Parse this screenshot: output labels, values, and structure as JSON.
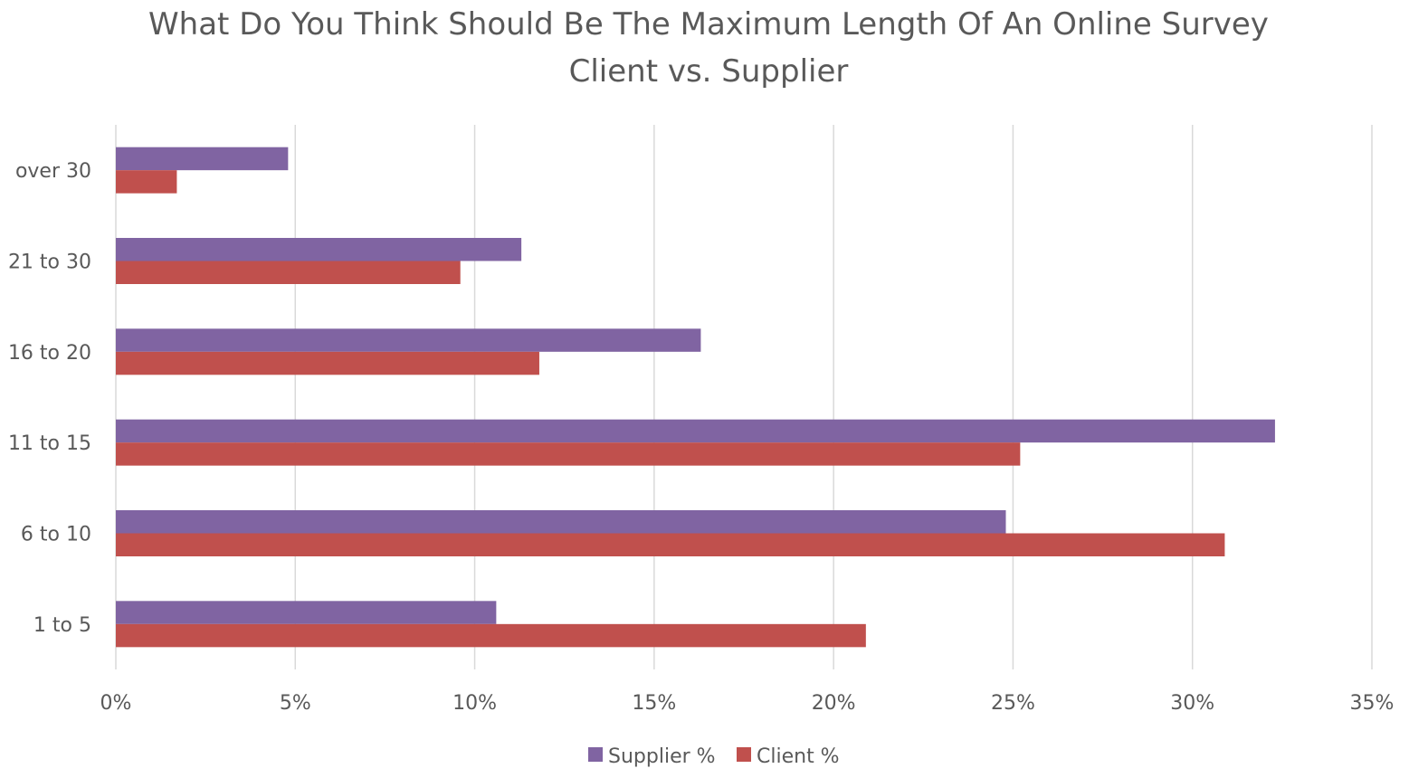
{
  "chart_data": {
    "type": "bar",
    "orientation": "horizontal",
    "title": "What Do You Think Should Be The Maximum Length Of An Online Survey",
    "subtitle": "Client vs. Supplier",
    "xlabel": "",
    "ylabel": "",
    "categories": [
      "1 to 5",
      "6 to 10",
      "11 to 15",
      "16 to 20",
      "21 to 30",
      "over 30"
    ],
    "series": [
      {
        "name": "Supplier %",
        "color": "#8064a2",
        "values": [
          10.6,
          24.8,
          32.3,
          16.3,
          11.3,
          4.8
        ]
      },
      {
        "name": "Client %",
        "color": "#c0504d",
        "values": [
          20.9,
          30.9,
          25.2,
          11.8,
          9.6,
          1.7
        ]
      }
    ],
    "xlim": [
      0,
      35
    ],
    "x_ticks": [
      "0%",
      "5%",
      "10%",
      "15%",
      "20%",
      "25%",
      "30%",
      "35%"
    ],
    "grid": "vertical",
    "legend_position": "bottom"
  }
}
